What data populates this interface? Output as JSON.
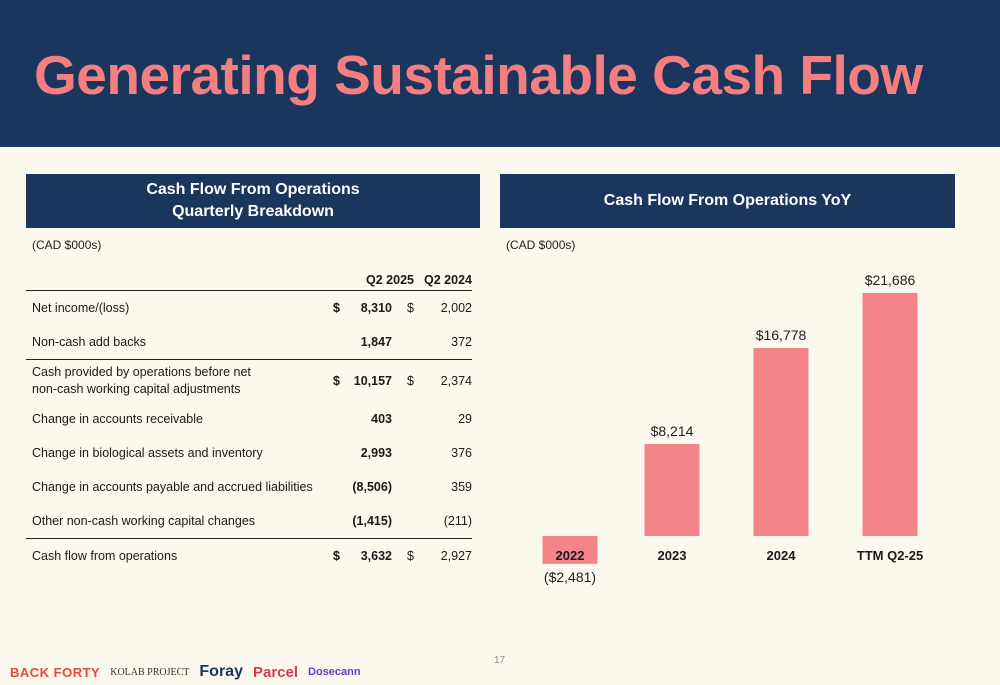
{
  "title": "Generating Sustainable Cash Flow",
  "left_panel": {
    "heading_line1": "Cash Flow From Operations",
    "heading_line2": "Quarterly Breakdown",
    "unit": "(CAD $000s)",
    "col1": "Q2 2025",
    "col2": "Q2 2024",
    "rows": [
      {
        "label": "Net income/(loss)",
        "cur1": "$",
        "v1": "8,310",
        "cur2": "$",
        "v2": "2,002"
      },
      {
        "label": "Non-cash add backs",
        "cur1": "",
        "v1": "1,847",
        "cur2": "",
        "v2": "372"
      },
      {
        "label": "Cash provided by operations before net",
        "label2": "non-cash working capital adjustments",
        "cur1": "$",
        "v1": "10,157",
        "cur2": "$",
        "v2": "2,374"
      },
      {
        "label": "Change in accounts receivable",
        "cur1": "",
        "v1": "403",
        "cur2": "",
        "v2": "29"
      },
      {
        "label": "Change in biological assets and inventory",
        "cur1": "",
        "v1": "2,993",
        "cur2": "",
        "v2": "376"
      },
      {
        "label": "Change in accounts payable and accrued liabilities",
        "cur1": "",
        "v1": "(8,506)",
        "cur2": "",
        "v2": "359"
      },
      {
        "label": "Other non-cash working capital changes",
        "cur1": "",
        "v1": "(1,415)",
        "cur2": "",
        "v2": "(211)"
      },
      {
        "label": "Cash flow from operations",
        "cur1": "$",
        "v1": "3,632",
        "cur2": "$",
        "v2": "2,927"
      }
    ]
  },
  "right_panel": {
    "heading": "Cash Flow From Operations YoY",
    "unit": "(CAD $000s)"
  },
  "chart_data": {
    "type": "bar",
    "title": "Cash Flow From Operations YoY",
    "categories": [
      "2022",
      "2023",
      "2024",
      "TTM Q2-25"
    ],
    "values": [
      -2481,
      8214,
      16778,
      21686
    ],
    "data_labels": [
      "($2,481)",
      "$8,214",
      "$16,778",
      "$21,686"
    ],
    "ylabel": "(CAD $000s)",
    "ylim": [
      -2481,
      21686
    ],
    "grid": false,
    "bar_color": "#f4848a"
  },
  "page_number": "17",
  "logos": [
    "BACK FORTY",
    "KOLAB PROJECT",
    "Foray",
    "Parcel",
    "Dosecann"
  ],
  "colors": {
    "navy": "#1b365d",
    "coral": "#f47e80",
    "background": "#fbf8ee"
  }
}
